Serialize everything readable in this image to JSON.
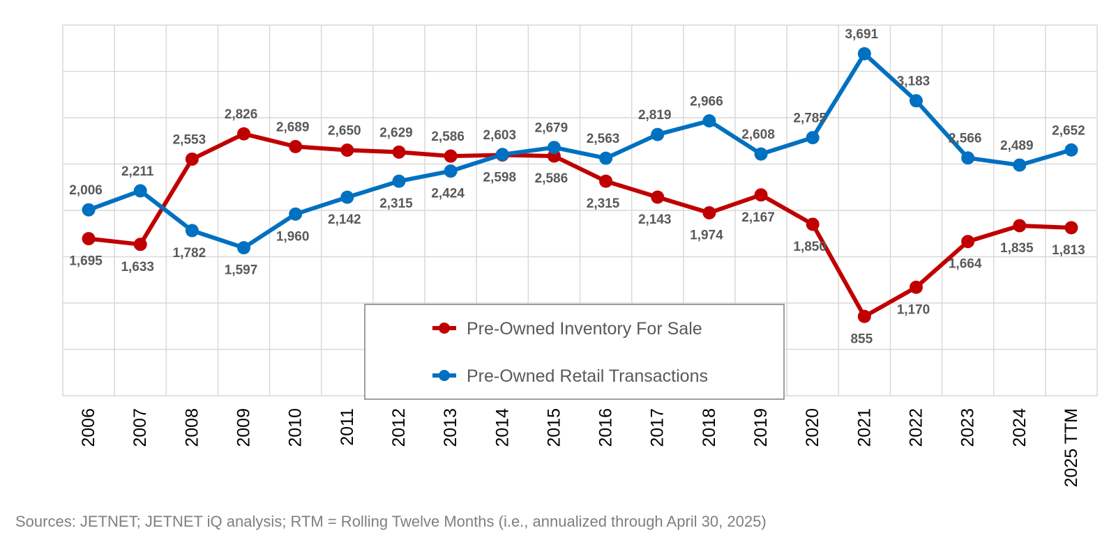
{
  "chart_data": {
    "type": "line",
    "categories": [
      "2006",
      "2007",
      "2008",
      "2009",
      "2010",
      "2011",
      "2012",
      "2013",
      "2014",
      "2015",
      "2016",
      "2017",
      "2018",
      "2019",
      "2020",
      "2021",
      "2022",
      "2023",
      "2024",
      "2025 TTM"
    ],
    "series": [
      {
        "name": "Pre-Owned Inventory For Sale",
        "color": "#c00000",
        "values": [
          1695,
          1633,
          2553,
          2826,
          2689,
          2650,
          2629,
          2586,
          2598,
          2586,
          2315,
          2143,
          1974,
          2167,
          1850,
          855,
          1170,
          1664,
          1835,
          1813
        ],
        "labels": [
          "1,695",
          "1,633",
          "2,553",
          "2,826",
          "2,689",
          "2,650",
          "2,629",
          "2,586",
          "2,598",
          "2,586",
          "2,315",
          "2,143",
          "1,974",
          "2,167",
          "1,850",
          "855",
          "1,170",
          "1,664",
          "1,835",
          "1,813"
        ]
      },
      {
        "name": "Pre-Owned Retail Transactions",
        "color": "#0070c0",
        "values": [
          2006,
          2211,
          1782,
          1597,
          1960,
          2142,
          2315,
          2424,
          2603,
          2679,
          2563,
          2819,
          2966,
          2608,
          2785,
          3691,
          3183,
          2566,
          2489,
          2652
        ],
        "labels": [
          "2,006",
          "2,211",
          "1,782",
          "1,597",
          "1,960",
          "2,142",
          "2,315",
          "2,424",
          "2,603",
          "2,679",
          "2,563",
          "2,819",
          "2,966",
          "2,608",
          "2,785",
          "3,691",
          "3,183",
          "2,566",
          "2,489",
          "2,652"
        ]
      }
    ],
    "ylim": [
      0,
      4000
    ],
    "grid": true,
    "legend_position": "bottom-center"
  },
  "source_note": "Sources: JETNET; JETNET iQ analysis; RTM = Rolling Twelve Months (i.e., annualized through April 30, 2025)"
}
